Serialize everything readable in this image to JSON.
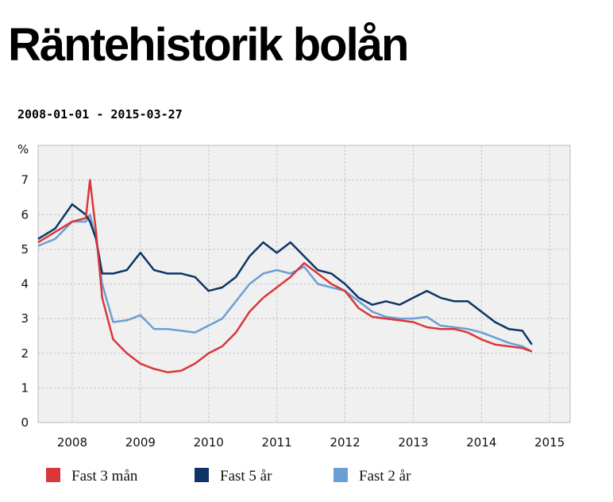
{
  "chart_data": {
    "type": "line",
    "title": "Räntehistorik bolån",
    "subtitle": "2008-01-01 - 2015-03-27",
    "y_label": "%",
    "x": [
      2008,
      2008.25,
      2008.5,
      2008.7,
      2008.76,
      2008.85,
      2008.94,
      2009.1,
      2009.3,
      2009.5,
      2009.7,
      2009.9,
      2010.1,
      2010.3,
      2010.5,
      2010.7,
      2010.9,
      2011.1,
      2011.3,
      2011.5,
      2011.7,
      2011.9,
      2012.1,
      2012.3,
      2012.5,
      2012.7,
      2012.9,
      2013.1,
      2013.3,
      2013.5,
      2013.7,
      2013.9,
      2014.1,
      2014.3,
      2014.5,
      2014.7,
      2014.9,
      2015.1,
      2015.24
    ],
    "series": [
      {
        "name": "Fast 3 mån",
        "color": "#d9373a",
        "values": [
          5.2,
          5.5,
          5.8,
          5.9,
          7.0,
          5.5,
          3.6,
          2.4,
          2.0,
          1.7,
          1.55,
          1.45,
          1.5,
          1.7,
          2.0,
          2.2,
          2.6,
          3.2,
          3.6,
          3.9,
          4.2,
          4.6,
          4.3,
          4.0,
          3.8,
          3.3,
          3.05,
          3.0,
          2.95,
          2.9,
          2.75,
          2.7,
          2.7,
          2.6,
          2.4,
          2.25,
          2.2,
          2.15,
          2.05
        ]
      },
      {
        "name": "Fast 5 år",
        "color": "#0e3466",
        "values": [
          5.3,
          5.6,
          6.3,
          6.0,
          5.8,
          5.3,
          4.3,
          4.3,
          4.4,
          4.9,
          4.4,
          4.3,
          4.3,
          4.2,
          3.8,
          3.9,
          4.2,
          4.8,
          5.2,
          4.9,
          5.2,
          4.8,
          4.4,
          4.3,
          4.0,
          3.6,
          3.4,
          3.5,
          3.4,
          3.6,
          3.8,
          3.6,
          3.5,
          3.5,
          3.2,
          2.9,
          2.7,
          2.65,
          2.25
        ]
      },
      {
        "name": "Fast 2 år",
        "color": "#6a9fd4",
        "values": [
          5.1,
          5.3,
          5.8,
          5.8,
          6.0,
          5.3,
          4.0,
          2.9,
          2.95,
          3.1,
          2.7,
          2.7,
          2.65,
          2.6,
          2.8,
          3.0,
          3.5,
          4.0,
          4.3,
          4.4,
          4.3,
          4.5,
          4.0,
          3.9,
          3.8,
          3.5,
          3.2,
          3.05,
          3.0,
          3.0,
          3.05,
          2.8,
          2.75,
          2.7,
          2.6,
          2.45,
          2.3,
          2.2,
          2.05
        ]
      }
    ],
    "xlim": [
      2008,
      2015.8
    ],
    "xticks": [
      {
        "value": 2008.5,
        "label": "2008"
      },
      {
        "value": 2009.5,
        "label": "2009"
      },
      {
        "value": 2010.5,
        "label": "2010"
      },
      {
        "value": 2011.5,
        "label": "2011"
      },
      {
        "value": 2012.5,
        "label": "2012"
      },
      {
        "value": 2013.5,
        "label": "2013"
      },
      {
        "value": 2014.5,
        "label": "2014"
      },
      {
        "value": 2015.5,
        "label": "2015"
      }
    ],
    "ylim": [
      0,
      8
    ],
    "yticks": [
      0,
      1,
      2,
      3,
      4,
      5,
      6,
      7
    ],
    "grid": true
  }
}
